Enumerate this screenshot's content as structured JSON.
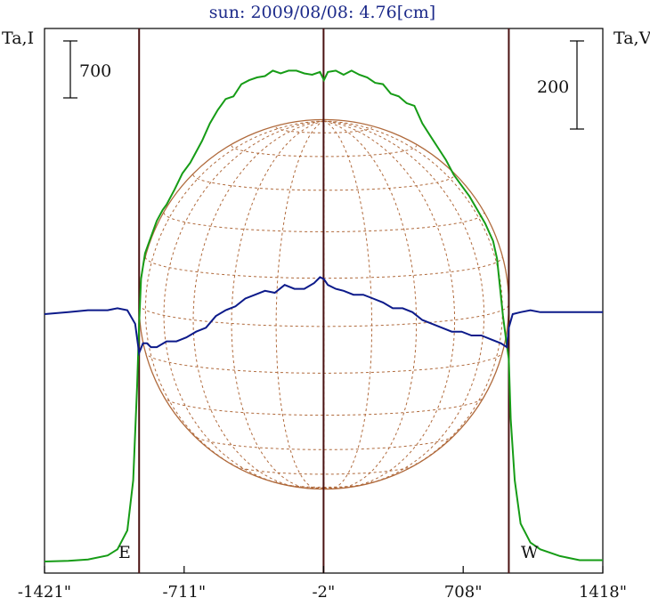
{
  "chart_data": {
    "type": "line",
    "title": "sun: 2009/08/08: 4.76[cm]",
    "left_axis_label": "Ta,I",
    "right_axis_label": "Ta,V",
    "left_scale_bar": "700",
    "right_scale_bar": "200",
    "east_label": "E",
    "west_label": "W",
    "x_tick_labels": [
      "-1421\"",
      "-711\"",
      "-2\"",
      "708\"",
      "1418\""
    ],
    "x_ticks": [
      -1421,
      -711,
      -2,
      708,
      1418
    ],
    "xlim": [
      -1421,
      1418
    ],
    "limb_x": [
      -940,
      940
    ],
    "center_x": -2,
    "colors": {
      "stokes_i": "#169c16",
      "stokes_v": "#0c1a8a",
      "limb": "#4a1212",
      "disk": "#b06a3c",
      "grid": "#b06a3c"
    },
    "series": [
      {
        "name": "Ta,I",
        "x": [
          -1421,
          -1300,
          -1200,
          -1100,
          -1050,
          -1000,
          -970,
          -950,
          -940,
          -930,
          -910,
          -880,
          -850,
          -820,
          -800,
          -760,
          -720,
          -680,
          -650,
          -620,
          -580,
          -540,
          -500,
          -460,
          -420,
          -380,
          -340,
          -300,
          -260,
          -220,
          -180,
          -140,
          -100,
          -60,
          -20,
          0,
          20,
          60,
          100,
          140,
          180,
          220,
          260,
          300,
          340,
          380,
          420,
          460,
          500,
          540,
          580,
          620,
          660,
          700,
          740,
          780,
          820,
          860,
          880,
          910,
          930,
          940,
          950,
          970,
          1000,
          1050,
          1100,
          1200,
          1300,
          1418
        ],
        "y": [
          0,
          5,
          15,
          45,
          90,
          230,
          600,
          1300,
          1750,
          2090,
          2280,
          2400,
          2520,
          2600,
          2640,
          2750,
          2870,
          2950,
          3030,
          3110,
          3240,
          3340,
          3420,
          3440,
          3530,
          3560,
          3580,
          3590,
          3630,
          3610,
          3630,
          3630,
          3610,
          3600,
          3620,
          3560,
          3620,
          3630,
          3600,
          3630,
          3600,
          3580,
          3540,
          3530,
          3460,
          3440,
          3390,
          3370,
          3240,
          3150,
          3060,
          2970,
          2860,
          2780,
          2700,
          2600,
          2500,
          2370,
          2240,
          1820,
          1600,
          1500,
          1050,
          600,
          280,
          140,
          90,
          40,
          10,
          10
        ]
      },
      {
        "name": "Ta,V",
        "x": [
          -1421,
          -1300,
          -1200,
          -1100,
          -1050,
          -1000,
          -960,
          -940,
          -920,
          -900,
          -880,
          -850,
          -800,
          -750,
          -700,
          -650,
          -600,
          -550,
          -500,
          -450,
          -400,
          -350,
          -300,
          -250,
          -200,
          -150,
          -100,
          -50,
          -20,
          0,
          20,
          60,
          100,
          150,
          200,
          250,
          300,
          350,
          400,
          450,
          500,
          550,
          600,
          650,
          700,
          750,
          800,
          850,
          900,
          930,
          940,
          960,
          1000,
          1050,
          1100,
          1200,
          1300,
          1418
        ],
        "y": [
          0,
          1,
          2,
          2,
          3,
          2,
          -5,
          -20,
          -15,
          -15,
          -17,
          -17,
          -14,
          -14,
          -12,
          -9,
          -7,
          -1,
          2,
          4,
          8,
          10,
          12,
          11,
          15,
          13,
          13,
          16,
          19,
          18,
          15,
          13,
          12,
          10,
          10,
          8,
          6,
          3,
          3,
          1,
          -3,
          -5,
          -7,
          -9,
          -9,
          -11,
          -11,
          -13,
          -15,
          -17,
          -7,
          0,
          1,
          2,
          1,
          1,
          1,
          1
        ]
      }
    ],
    "i_range": [
      0,
      3850
    ],
    "v_range": [
      -75,
      90
    ]
  }
}
